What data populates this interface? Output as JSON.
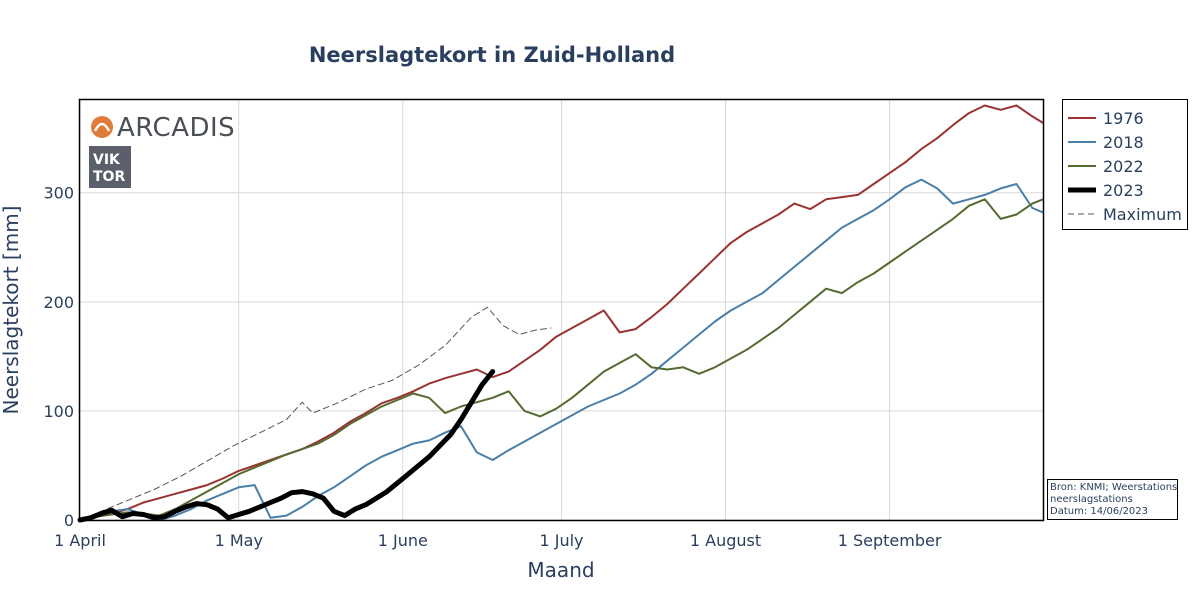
{
  "chart_data": {
    "type": "line",
    "title": "Neerslagtekort in Zuid-Holland",
    "xlabel": "Maand",
    "ylabel": "Neerslagtekort [mm]",
    "x_domain": [
      "2023-04-01",
      "2023-09-30"
    ],
    "xticks": [
      {
        "label": "1 April",
        "date": "2023-04-01"
      },
      {
        "label": "1 May",
        "date": "2023-05-01"
      },
      {
        "label": "1 June",
        "date": "2023-06-01"
      },
      {
        "label": "1 July",
        "date": "2023-07-01"
      },
      {
        "label": "1 August",
        "date": "2023-08-01"
      },
      {
        "label": "1 September",
        "date": "2023-09-01"
      }
    ],
    "ylim": [
      0,
      385
    ],
    "yticks": [
      0,
      100,
      200,
      300
    ],
    "grid": true,
    "legend_position": "top-right",
    "series": [
      {
        "name": "1976",
        "color": "#993333",
        "width": 2,
        "dash": "",
        "points": [
          [
            "2023-04-01",
            0
          ],
          [
            "2023-04-04",
            3
          ],
          [
            "2023-04-07",
            6
          ],
          [
            "2023-04-10",
            10
          ],
          [
            "2023-04-13",
            16
          ],
          [
            "2023-04-16",
            20
          ],
          [
            "2023-04-19",
            24
          ],
          [
            "2023-04-22",
            28
          ],
          [
            "2023-04-25",
            32
          ],
          [
            "2023-04-28",
            38
          ],
          [
            "2023-05-01",
            45
          ],
          [
            "2023-05-04",
            50
          ],
          [
            "2023-05-07",
            55
          ],
          [
            "2023-05-10",
            60
          ],
          [
            "2023-05-13",
            65
          ],
          [
            "2023-05-16",
            72
          ],
          [
            "2023-05-19",
            80
          ],
          [
            "2023-05-22",
            90
          ],
          [
            "2023-05-25",
            98
          ],
          [
            "2023-05-28",
            107
          ],
          [
            "2023-05-31",
            112
          ],
          [
            "2023-06-03",
            118
          ],
          [
            "2023-06-06",
            125
          ],
          [
            "2023-06-09",
            130
          ],
          [
            "2023-06-12",
            134
          ],
          [
            "2023-06-15",
            138
          ],
          [
            "2023-06-18",
            131
          ],
          [
            "2023-06-21",
            136
          ],
          [
            "2023-06-24",
            146
          ],
          [
            "2023-06-27",
            156
          ],
          [
            "2023-06-30",
            168
          ],
          [
            "2023-07-03",
            176
          ],
          [
            "2023-07-06",
            184
          ],
          [
            "2023-07-09",
            192
          ],
          [
            "2023-07-12",
            172
          ],
          [
            "2023-07-15",
            175
          ],
          [
            "2023-07-18",
            186
          ],
          [
            "2023-07-21",
            198
          ],
          [
            "2023-07-24",
            212
          ],
          [
            "2023-07-27",
            226
          ],
          [
            "2023-07-30",
            240
          ],
          [
            "2023-08-02",
            254
          ],
          [
            "2023-08-05",
            264
          ],
          [
            "2023-08-08",
            272
          ],
          [
            "2023-08-11",
            280
          ],
          [
            "2023-08-14",
            290
          ],
          [
            "2023-08-17",
            285
          ],
          [
            "2023-08-20",
            294
          ],
          [
            "2023-08-23",
            296
          ],
          [
            "2023-08-26",
            298
          ],
          [
            "2023-08-29",
            308
          ],
          [
            "2023-09-01",
            318
          ],
          [
            "2023-09-04",
            328
          ],
          [
            "2023-09-07",
            340
          ],
          [
            "2023-09-10",
            350
          ],
          [
            "2023-09-13",
            362
          ],
          [
            "2023-09-16",
            373
          ],
          [
            "2023-09-19",
            380
          ],
          [
            "2023-09-22",
            376
          ],
          [
            "2023-09-25",
            380
          ],
          [
            "2023-09-28",
            370
          ],
          [
            "2023-09-30",
            364
          ]
        ]
      },
      {
        "name": "2018",
        "color": "#4a7fa8",
        "width": 2,
        "dash": "",
        "points": [
          [
            "2023-04-01",
            0
          ],
          [
            "2023-04-04",
            4
          ],
          [
            "2023-04-07",
            8
          ],
          [
            "2023-04-10",
            10
          ],
          [
            "2023-04-13",
            5
          ],
          [
            "2023-04-16",
            0
          ],
          [
            "2023-04-19",
            4
          ],
          [
            "2023-04-22",
            10
          ],
          [
            "2023-04-25",
            18
          ],
          [
            "2023-04-28",
            24
          ],
          [
            "2023-05-01",
            30
          ],
          [
            "2023-05-04",
            32
          ],
          [
            "2023-05-07",
            2
          ],
          [
            "2023-05-10",
            4
          ],
          [
            "2023-05-13",
            12
          ],
          [
            "2023-05-16",
            22
          ],
          [
            "2023-05-19",
            30
          ],
          [
            "2023-05-22",
            40
          ],
          [
            "2023-05-25",
            50
          ],
          [
            "2023-05-28",
            58
          ],
          [
            "2023-05-31",
            64
          ],
          [
            "2023-06-03",
            70
          ],
          [
            "2023-06-06",
            73
          ],
          [
            "2023-06-09",
            80
          ],
          [
            "2023-06-12",
            86
          ],
          [
            "2023-06-15",
            62
          ],
          [
            "2023-06-18",
            55
          ],
          [
            "2023-06-21",
            64
          ],
          [
            "2023-06-24",
            72
          ],
          [
            "2023-06-27",
            80
          ],
          [
            "2023-06-30",
            88
          ],
          [
            "2023-07-03",
            96
          ],
          [
            "2023-07-06",
            104
          ],
          [
            "2023-07-09",
            110
          ],
          [
            "2023-07-12",
            116
          ],
          [
            "2023-07-15",
            124
          ],
          [
            "2023-07-18",
            134
          ],
          [
            "2023-07-21",
            146
          ],
          [
            "2023-07-24",
            158
          ],
          [
            "2023-07-27",
            170
          ],
          [
            "2023-07-30",
            182
          ],
          [
            "2023-08-02",
            192
          ],
          [
            "2023-08-05",
            200
          ],
          [
            "2023-08-08",
            208
          ],
          [
            "2023-08-11",
            220
          ],
          [
            "2023-08-14",
            232
          ],
          [
            "2023-08-17",
            244
          ],
          [
            "2023-08-20",
            256
          ],
          [
            "2023-08-23",
            268
          ],
          [
            "2023-08-26",
            276
          ],
          [
            "2023-08-29",
            284
          ],
          [
            "2023-09-01",
            294
          ],
          [
            "2023-09-04",
            305
          ],
          [
            "2023-09-07",
            312
          ],
          [
            "2023-09-10",
            304
          ],
          [
            "2023-09-13",
            290
          ],
          [
            "2023-09-16",
            294
          ],
          [
            "2023-09-19",
            298
          ],
          [
            "2023-09-22",
            304
          ],
          [
            "2023-09-25",
            308
          ],
          [
            "2023-09-28",
            286
          ],
          [
            "2023-09-30",
            282
          ]
        ]
      },
      {
        "name": "2022",
        "color": "#556b2f",
        "width": 2,
        "dash": "",
        "points": [
          [
            "2023-04-01",
            0
          ],
          [
            "2023-04-04",
            3
          ],
          [
            "2023-04-07",
            5
          ],
          [
            "2023-04-10",
            7
          ],
          [
            "2023-04-13",
            6
          ],
          [
            "2023-04-16",
            4
          ],
          [
            "2023-04-19",
            10
          ],
          [
            "2023-04-22",
            18
          ],
          [
            "2023-04-25",
            26
          ],
          [
            "2023-04-28",
            34
          ],
          [
            "2023-05-01",
            42
          ],
          [
            "2023-05-04",
            48
          ],
          [
            "2023-05-07",
            54
          ],
          [
            "2023-05-10",
            60
          ],
          [
            "2023-05-13",
            65
          ],
          [
            "2023-05-16",
            70
          ],
          [
            "2023-05-19",
            78
          ],
          [
            "2023-05-22",
            88
          ],
          [
            "2023-05-25",
            96
          ],
          [
            "2023-05-28",
            104
          ],
          [
            "2023-05-31",
            110
          ],
          [
            "2023-06-03",
            116
          ],
          [
            "2023-06-06",
            112
          ],
          [
            "2023-06-09",
            98
          ],
          [
            "2023-06-12",
            104
          ],
          [
            "2023-06-15",
            108
          ],
          [
            "2023-06-18",
            112
          ],
          [
            "2023-06-21",
            118
          ],
          [
            "2023-06-24",
            100
          ],
          [
            "2023-06-27",
            95
          ],
          [
            "2023-06-30",
            102
          ],
          [
            "2023-07-03",
            112
          ],
          [
            "2023-07-06",
            124
          ],
          [
            "2023-07-09",
            136
          ],
          [
            "2023-07-12",
            144
          ],
          [
            "2023-07-15",
            152
          ],
          [
            "2023-07-18",
            140
          ],
          [
            "2023-07-21",
            138
          ],
          [
            "2023-07-24",
            140
          ],
          [
            "2023-07-27",
            134
          ],
          [
            "2023-07-30",
            140
          ],
          [
            "2023-08-02",
            148
          ],
          [
            "2023-08-05",
            156
          ],
          [
            "2023-08-08",
            166
          ],
          [
            "2023-08-11",
            176
          ],
          [
            "2023-08-14",
            188
          ],
          [
            "2023-08-17",
            200
          ],
          [
            "2023-08-20",
            212
          ],
          [
            "2023-08-23",
            208
          ],
          [
            "2023-08-26",
            218
          ],
          [
            "2023-08-29",
            226
          ],
          [
            "2023-09-01",
            236
          ],
          [
            "2023-09-04",
            246
          ],
          [
            "2023-09-07",
            256
          ],
          [
            "2023-09-10",
            266
          ],
          [
            "2023-09-13",
            276
          ],
          [
            "2023-09-16",
            288
          ],
          [
            "2023-09-19",
            294
          ],
          [
            "2023-09-22",
            276
          ],
          [
            "2023-09-25",
            280
          ],
          [
            "2023-09-28",
            290
          ],
          [
            "2023-09-30",
            294
          ]
        ]
      },
      {
        "name": "2023",
        "color": "#000000",
        "width": 5,
        "dash": "",
        "points": [
          [
            "2023-04-01",
            0
          ],
          [
            "2023-04-03",
            2
          ],
          [
            "2023-04-05",
            6
          ],
          [
            "2023-04-07",
            9
          ],
          [
            "2023-04-09",
            3
          ],
          [
            "2023-04-11",
            6
          ],
          [
            "2023-04-13",
            5
          ],
          [
            "2023-04-15",
            2
          ],
          [
            "2023-04-17",
            3
          ],
          [
            "2023-04-19",
            8
          ],
          [
            "2023-04-21",
            12
          ],
          [
            "2023-04-23",
            15
          ],
          [
            "2023-04-25",
            14
          ],
          [
            "2023-04-27",
            10
          ],
          [
            "2023-04-29",
            2
          ],
          [
            "2023-05-01",
            5
          ],
          [
            "2023-05-03",
            8
          ],
          [
            "2023-05-05",
            12
          ],
          [
            "2023-05-07",
            16
          ],
          [
            "2023-05-09",
            20
          ],
          [
            "2023-05-11",
            25
          ],
          [
            "2023-05-13",
            26
          ],
          [
            "2023-05-15",
            24
          ],
          [
            "2023-05-17",
            20
          ],
          [
            "2023-05-19",
            8
          ],
          [
            "2023-05-21",
            4
          ],
          [
            "2023-05-23",
            10
          ],
          [
            "2023-05-25",
            14
          ],
          [
            "2023-05-27",
            20
          ],
          [
            "2023-05-29",
            26
          ],
          [
            "2023-05-31",
            34
          ],
          [
            "2023-06-02",
            42
          ],
          [
            "2023-06-04",
            50
          ],
          [
            "2023-06-06",
            58
          ],
          [
            "2023-06-08",
            68
          ],
          [
            "2023-06-10",
            78
          ],
          [
            "2023-06-12",
            92
          ],
          [
            "2023-06-14",
            108
          ],
          [
            "2023-06-16",
            124
          ],
          [
            "2023-06-18",
            136
          ]
        ]
      },
      {
        "name": "Maximum",
        "color": "#555555",
        "width": 1,
        "dash": "6,4",
        "points": [
          [
            "2023-04-01",
            0
          ],
          [
            "2023-04-05",
            8
          ],
          [
            "2023-04-10",
            18
          ],
          [
            "2023-04-15",
            28
          ],
          [
            "2023-04-20",
            40
          ],
          [
            "2023-04-25",
            54
          ],
          [
            "2023-04-30",
            68
          ],
          [
            "2023-05-05",
            80
          ],
          [
            "2023-05-10",
            92
          ],
          [
            "2023-05-13",
            108
          ],
          [
            "2023-05-15",
            98
          ],
          [
            "2023-05-20",
            108
          ],
          [
            "2023-05-25",
            120
          ],
          [
            "2023-05-30",
            128
          ],
          [
            "2023-06-04",
            142
          ],
          [
            "2023-06-09",
            160
          ],
          [
            "2023-06-14",
            186
          ],
          [
            "2023-06-17",
            195
          ],
          [
            "2023-06-20",
            178
          ],
          [
            "2023-06-23",
            170
          ],
          [
            "2023-06-26",
            174
          ],
          [
            "2023-06-29",
            176
          ]
        ]
      }
    ]
  },
  "logos": {
    "arcadis": "ARCADIS",
    "viktor_line1": "VIK",
    "viktor_line2": "TOR",
    "arcadis_color": "#e07b39",
    "viktor_bg": "#5b5e6b"
  },
  "note": {
    "line1": "Bron: KNMI; Weerstations",
    "line2": "neerslagstations",
    "line3": "Datum: 14/06/2023"
  }
}
